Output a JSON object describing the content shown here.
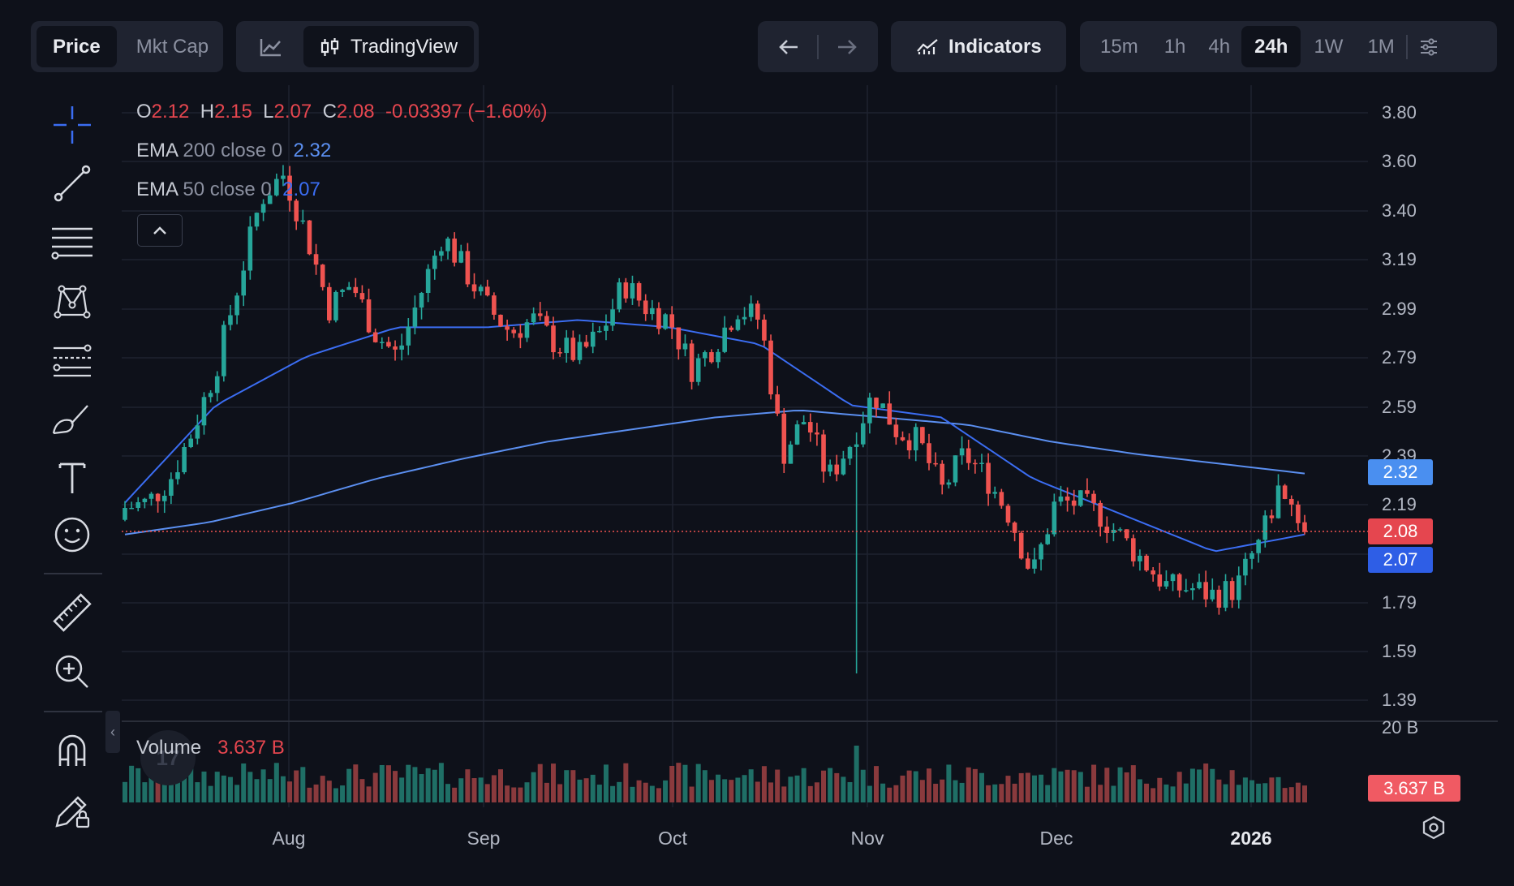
{
  "toolbar": {
    "price": "Price",
    "mktcap": "Mkt Cap",
    "tradingview": "TradingView",
    "indicators": "Indicators",
    "timeframes": [
      "15m",
      "1h",
      "4h",
      "24h",
      "1W",
      "1M"
    ],
    "active_timeframe": "24h"
  },
  "ohlc": {
    "o_label": "O",
    "o": "2.12",
    "h_label": "H",
    "h": "2.15",
    "l_label": "L",
    "l": "2.07",
    "c_label": "C",
    "c": "2.08",
    "change": "-0.03397 (−1.60%)"
  },
  "ema200": {
    "label": "EMA",
    "params": "200 close 0",
    "value": "2.32"
  },
  "ema50": {
    "label": "EMA",
    "params": "50 close 0",
    "value": "2.07"
  },
  "volume": {
    "label": "Volume",
    "value": "3.637 B",
    "axis_max": "20 B"
  },
  "price_axis": [
    "3.80",
    "3.60",
    "3.40",
    "3.19",
    "2.99",
    "2.79",
    "2.59",
    "2.39",
    "2.19",
    "1.79",
    "1.59",
    "1.39"
  ],
  "tags": {
    "ema200": "2.32",
    "last": "2.08",
    "ema50": "2.07"
  },
  "x_labels": [
    "Aug",
    "Sep",
    "Oct",
    "Nov",
    "Dec",
    "2026"
  ],
  "tv_logo": "17",
  "colors": {
    "up": "#26a69a",
    "down": "#ef5350",
    "ema200": "#5b8ff0",
    "ema50": "#3b6df2",
    "bg": "#0e111a"
  },
  "chart_data": {
    "type": "candlestick",
    "title": "",
    "interval": "24h",
    "ylim": [
      1.39,
      3.8
    ],
    "x_labels": [
      "Aug",
      "Sep",
      "Oct",
      "Nov",
      "Dec",
      "2026"
    ],
    "last_close": 2.08,
    "ohlc_anchor_closes": [
      2.18,
      2.2,
      2.3,
      2.5,
      2.75,
      3.1,
      3.45,
      3.55,
      3.3,
      3.0,
      3.1,
      2.9,
      2.8,
      3.05,
      3.3,
      3.15,
      3.0,
      2.9,
      2.95,
      2.85,
      2.8,
      2.9,
      3.1,
      3.0,
      2.95,
      2.75,
      2.85,
      3.0,
      2.95,
      2.4,
      2.55,
      2.3,
      2.45,
      2.65,
      2.5,
      2.45,
      2.25,
      2.4,
      2.3,
      2.15,
      1.9,
      2.2,
      2.2,
      2.15,
      2.05,
      1.95,
      1.85,
      1.85,
      1.82,
      1.85,
      2.05,
      2.28,
      2.08
    ],
    "ema200_anchor": [
      2.07,
      2.12,
      2.2,
      2.3,
      2.38,
      2.45,
      2.5,
      2.55,
      2.58,
      2.55,
      2.52,
      2.45,
      2.4,
      2.36,
      2.32
    ],
    "ema50_anchor": [
      2.2,
      2.6,
      2.8,
      2.92,
      2.92,
      2.95,
      2.92,
      2.85,
      2.6,
      2.55,
      2.3,
      2.15,
      2.0,
      2.07
    ],
    "volume_unit": "B",
    "volume_last": 3.637,
    "volume_axis_max": 20
  }
}
